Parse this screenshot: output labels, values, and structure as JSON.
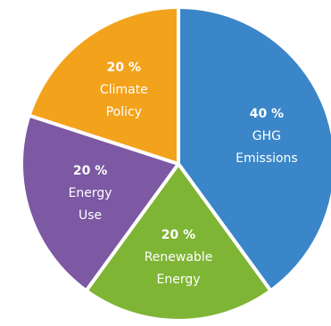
{
  "chart_data": {
    "type": "pie",
    "slices": [
      {
        "label": [
          "GHG",
          "Emissions"
        ],
        "pct_text": "40 %",
        "value": 40,
        "color": "#3a86c8"
      },
      {
        "label": [
          "Renewable",
          "Energy"
        ],
        "pct_text": "20 %",
        "value": 20,
        "color": "#7fb535"
      },
      {
        "label": [
          "Energy",
          "Use"
        ],
        "pct_text": "20 %",
        "value": 20,
        "color": "#7d58a3"
      },
      {
        "label": [
          "Climate",
          "Policy"
        ],
        "pct_text": "20 %",
        "value": 20,
        "color": "#f3a21b"
      }
    ]
  }
}
